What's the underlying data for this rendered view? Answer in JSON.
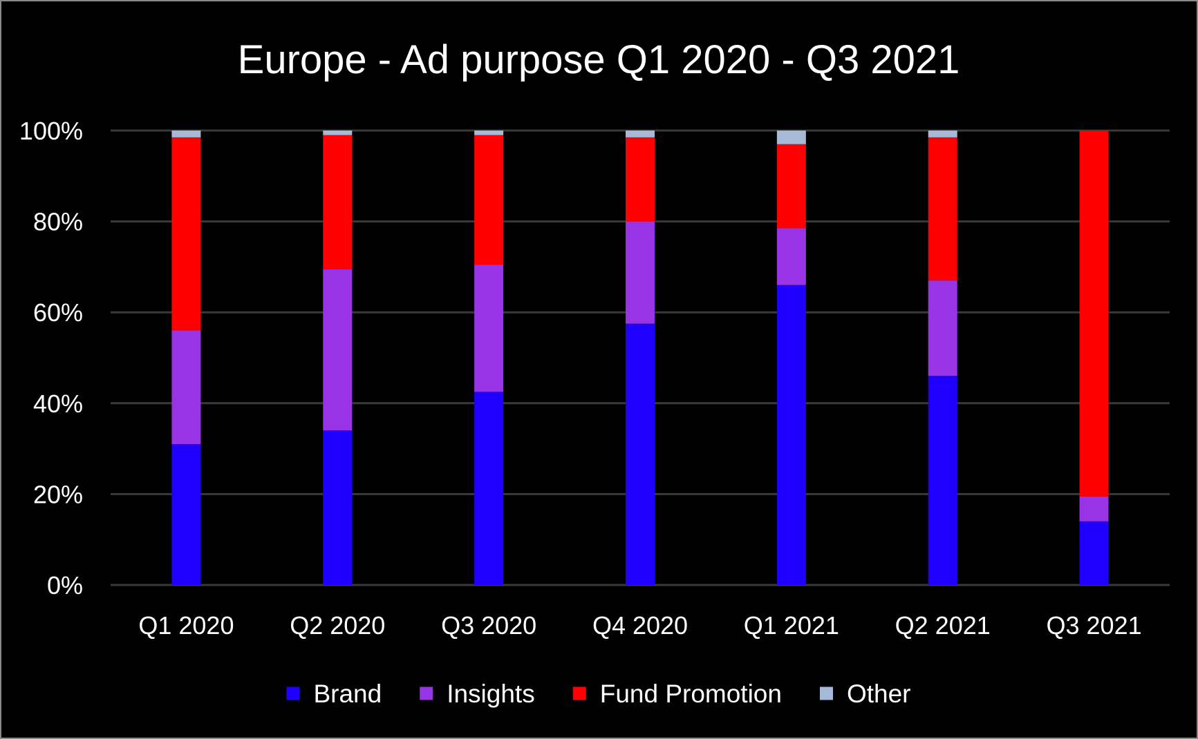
{
  "chart_data": {
    "type": "bar",
    "stacked": true,
    "normalized": true,
    "title": "Europe - Ad purpose Q1 2020 - Q3 2021",
    "categories": [
      "Q1 2020",
      "Q2 2020",
      "Q3 2020",
      "Q4 2020",
      "Q1 2021",
      "Q2 2021",
      "Q3 2021"
    ],
    "series": [
      {
        "name": "Brand",
        "color": "#1f00ff",
        "values": [
          31,
          34,
          42.5,
          57.5,
          66,
          46,
          14
        ]
      },
      {
        "name": "Insights",
        "color": "#9933e6",
        "values": [
          25,
          35.5,
          28,
          22.5,
          12.5,
          21,
          5.5
        ]
      },
      {
        "name": "Fund Promotion",
        "color": "#ff0000",
        "values": [
          42.5,
          29.5,
          28.5,
          18.5,
          18.5,
          31.5,
          80.5
        ]
      },
      {
        "name": "Other",
        "color": "#a6b9d6",
        "values": [
          1.5,
          1,
          1,
          1.5,
          3,
          1.5,
          0
        ]
      }
    ],
    "ylim": [
      0,
      100
    ],
    "yticks": [
      "0%",
      "20%",
      "40%",
      "60%",
      "80%",
      "100%"
    ],
    "xlabel": "",
    "ylabel": "",
    "grid": true,
    "legend_position": "bottom",
    "background": "#000000",
    "text_color": "#ffffff"
  }
}
